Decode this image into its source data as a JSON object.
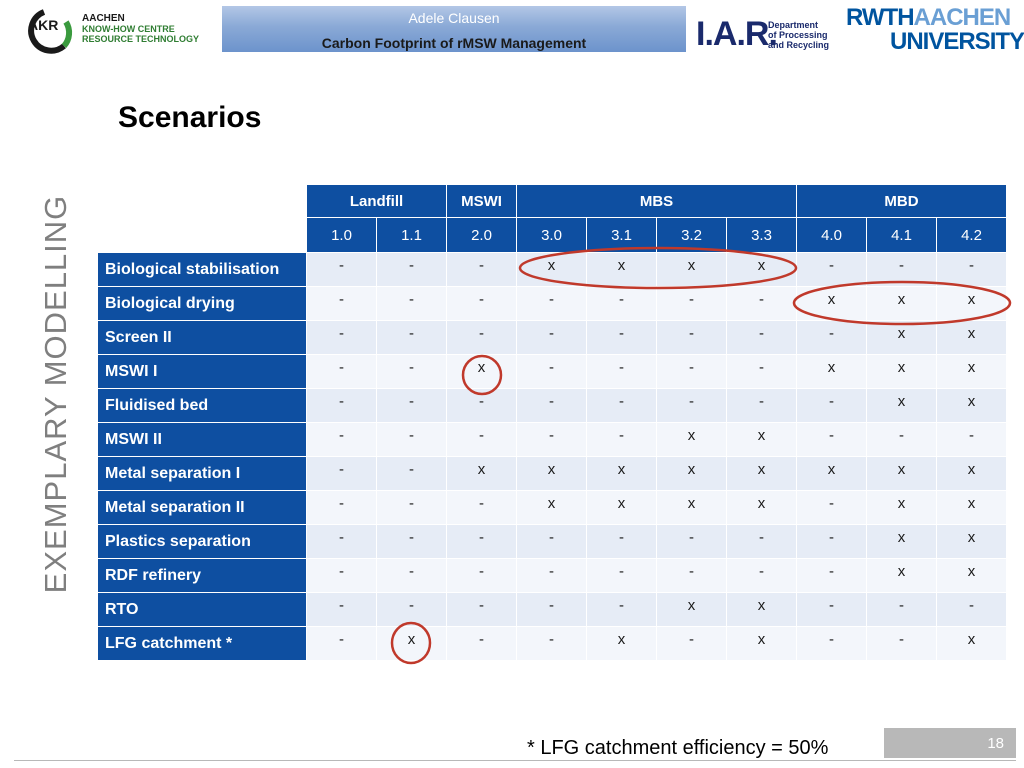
{
  "header": {
    "author": "Adele Clausen",
    "title": "Carbon Footprint of rMSW Management",
    "akr_logo": {
      "emblem": "AKR",
      "line1": "AACHEN",
      "line2": "KNOW-HOW CENTRE",
      "line3": "RESOURCE TECHNOLOGY"
    },
    "iar_logo": {
      "mark": "I.A.R.",
      "line1": "Department",
      "line2": "of Processing",
      "line3": "and Recycling"
    },
    "rwth_logo": {
      "part1": "RWTH",
      "part2": "AACHEN",
      "part3": "UNIVERSITY"
    }
  },
  "slide": {
    "title": "Scenarios",
    "side_label": "EXEMPLARY MODELLING",
    "footnote": "* LFG catchment efficiency = 50%",
    "page_number": "18"
  },
  "table": {
    "groups": [
      "Landfill",
      "MSWI",
      "MBS",
      "MBD"
    ],
    "scenarios": [
      "1.0",
      "1.1",
      "2.0",
      "3.0",
      "3.1",
      "3.2",
      "3.3",
      "4.0",
      "4.1",
      "4.2"
    ],
    "rows": [
      {
        "label": "Biological stabilisation",
        "values": [
          "-",
          "-",
          "-",
          "x",
          "x",
          "x",
          "x",
          "-",
          "-",
          "-"
        ]
      },
      {
        "label": "Biological drying",
        "values": [
          "-",
          "-",
          "-",
          "-",
          "-",
          "-",
          "-",
          "x",
          "x",
          "x"
        ]
      },
      {
        "label": "Screen II",
        "values": [
          "-",
          "-",
          "-",
          "-",
          "-",
          "-",
          "-",
          "-",
          "x",
          "x"
        ]
      },
      {
        "label": "MSWI I",
        "values": [
          "-",
          "-",
          "x",
          "-",
          "-",
          "-",
          "-",
          "x",
          "x",
          "x"
        ]
      },
      {
        "label": "Fluidised bed",
        "values": [
          "-",
          "-",
          "-",
          "-",
          "-",
          "-",
          "-",
          "-",
          "x",
          "x"
        ]
      },
      {
        "label": "MSWI II",
        "values": [
          "-",
          "-",
          "-",
          "-",
          "-",
          "x",
          "x",
          "-",
          "-",
          "-"
        ]
      },
      {
        "label": "Metal separation I",
        "values": [
          "-",
          "-",
          "x",
          "x",
          "x",
          "x",
          "x",
          "x",
          "x",
          "x"
        ]
      },
      {
        "label": "Metal separation II",
        "values": [
          "-",
          "-",
          "-",
          "x",
          "x",
          "x",
          "x",
          "-",
          "x",
          "x"
        ]
      },
      {
        "label": "Plastics separation",
        "values": [
          "-",
          "-",
          "-",
          "-",
          "-",
          "-",
          "-",
          "-",
          "x",
          "x"
        ]
      },
      {
        "label": "RDF refinery",
        "values": [
          "-",
          "-",
          "-",
          "-",
          "-",
          "-",
          "-",
          "-",
          "x",
          "x"
        ]
      },
      {
        "label": "RTO",
        "values": [
          "-",
          "-",
          "-",
          "-",
          "-",
          "x",
          "x",
          "-",
          "-",
          "-"
        ]
      },
      {
        "label": "LFG catchment *",
        "values": [
          "-",
          "x",
          "-",
          "-",
          "x",
          "-",
          "x",
          "-",
          "-",
          "x"
        ]
      }
    ]
  },
  "colors": {
    "header_blue": "#0e4fa1",
    "oval_red": "#c0392b",
    "side_label_gray": "#7f7f7f"
  }
}
